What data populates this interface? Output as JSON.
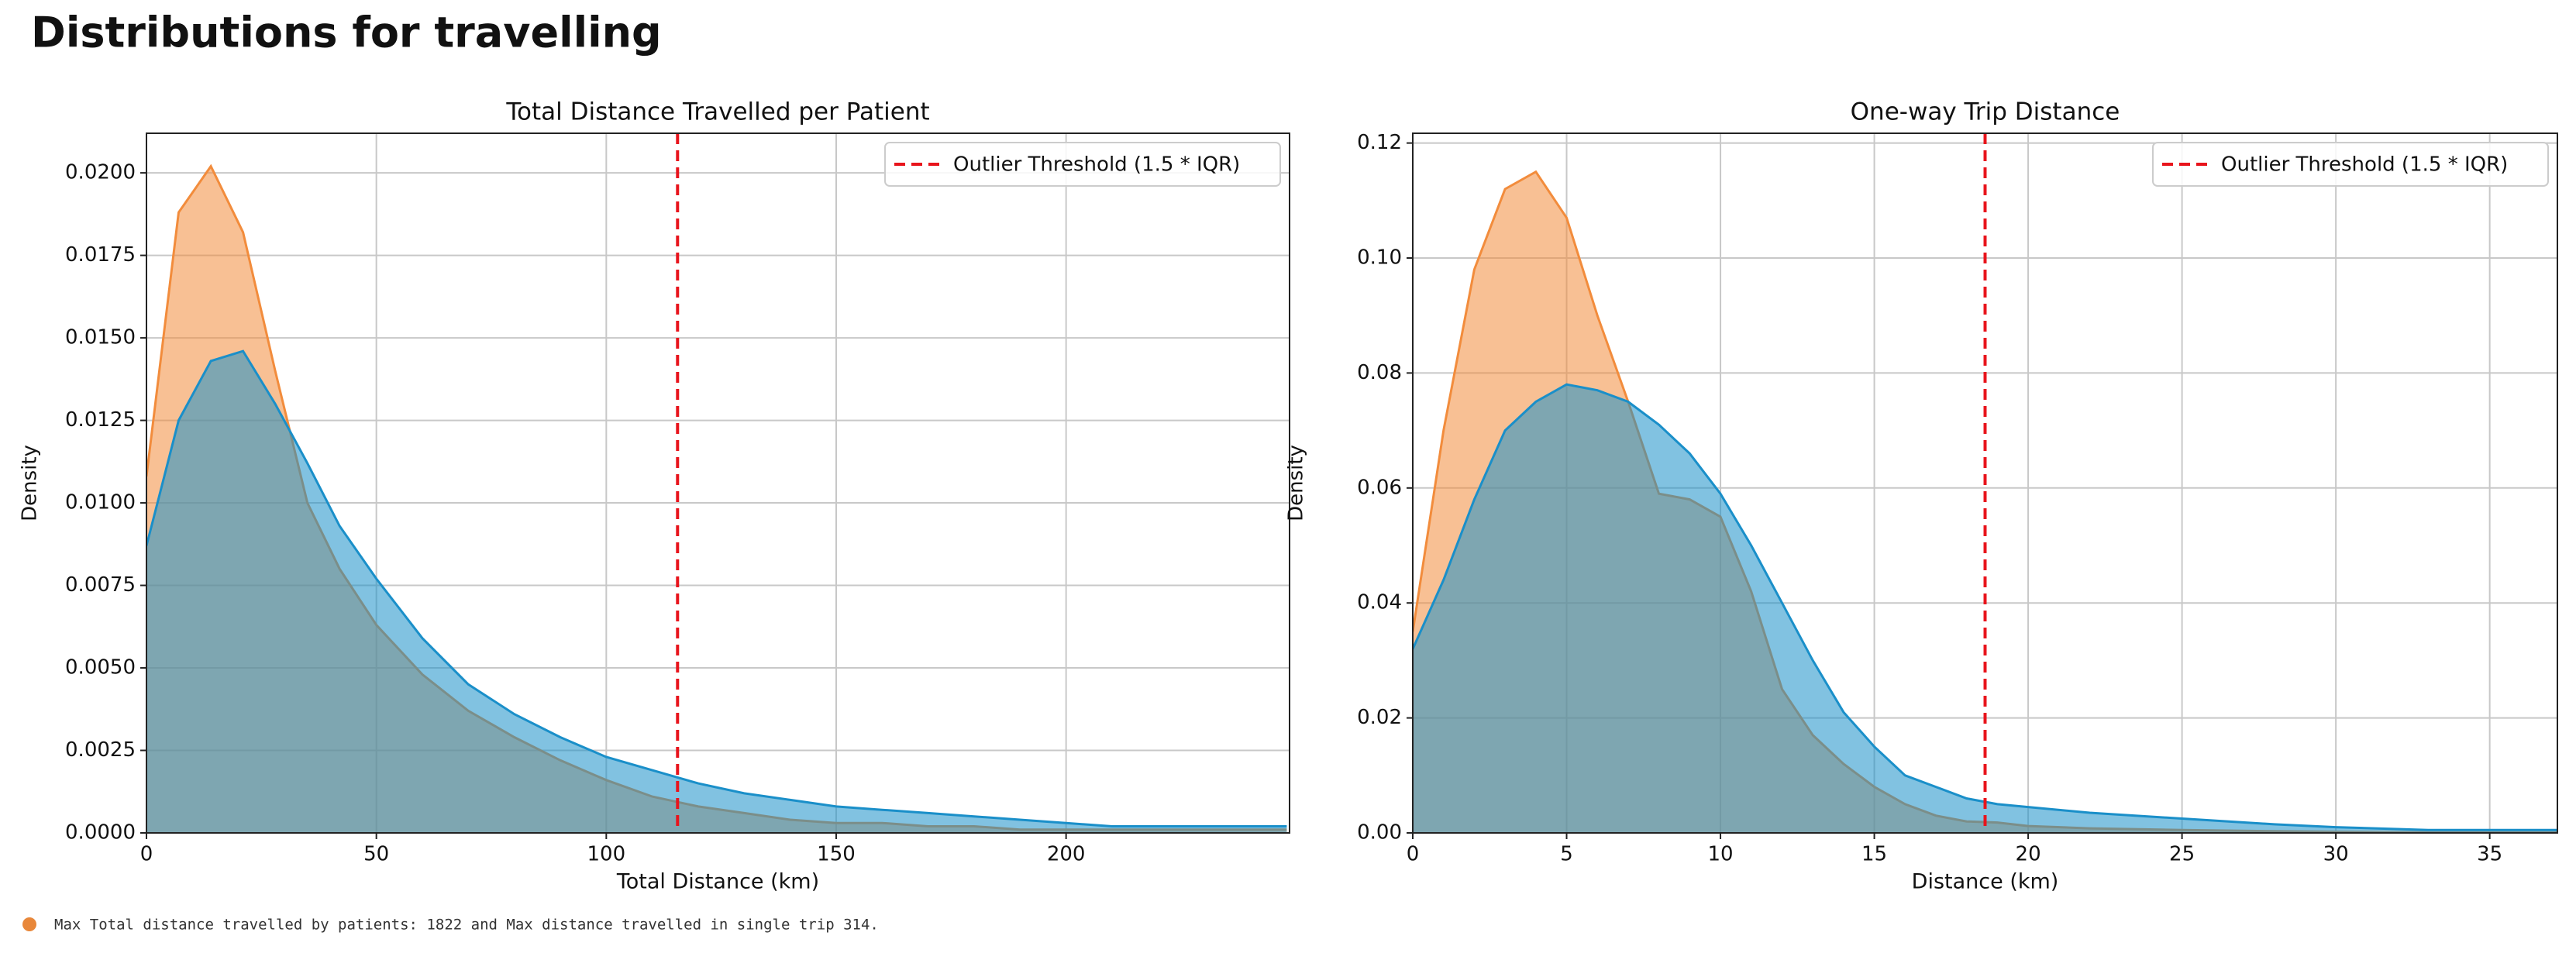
{
  "title": "Distributions for travelling",
  "footer": "Max Total distance travelled by patients: 1822 and  Max distance travelled in single trip 314.",
  "chart_data": [
    {
      "type": "area",
      "title": "Total Distance Travelled per Patient",
      "xlabel": "Total Distance (km)",
      "ylabel": "Density",
      "x": [
        0,
        7,
        14,
        21,
        28,
        35,
        42,
        50,
        60,
        70,
        80,
        90,
        100,
        110,
        120,
        130,
        140,
        150,
        160,
        170,
        180,
        190,
        200,
        210,
        220,
        230,
        240,
        248
      ],
      "series": [
        {
          "color": "#f28c3c",
          "values": [
            0.0108,
            0.0188,
            0.0202,
            0.0182,
            0.014,
            0.01,
            0.008,
            0.0063,
            0.0048,
            0.0037,
            0.0029,
            0.0022,
            0.0016,
            0.0011,
            0.0008,
            0.0006,
            0.0004,
            0.0003,
            0.0003,
            0.0002,
            0.0002,
            0.0001,
            0.0001,
            0.0001,
            0.0001,
            0.0001,
            0.0001,
            0.0001
          ]
        },
        {
          "color": "#1a8fc9",
          "values": [
            0.0087,
            0.0125,
            0.0143,
            0.0146,
            0.013,
            0.0112,
            0.0093,
            0.0077,
            0.0059,
            0.0045,
            0.0036,
            0.0029,
            0.0023,
            0.0019,
            0.0015,
            0.0012,
            0.001,
            0.0008,
            0.0007,
            0.0006,
            0.0005,
            0.0004,
            0.0003,
            0.0002,
            0.0002,
            0.0002,
            0.0002,
            0.0002
          ]
        }
      ],
      "xlim": [
        0,
        248.6
      ],
      "xticks": [
        0,
        50,
        100,
        150,
        200
      ],
      "ylim": [
        0,
        0.0212
      ],
      "yticks": [
        {
          "value": 0,
          "label": "0.0000"
        },
        {
          "value": 0.0025,
          "label": "0.0025"
        },
        {
          "value": 0.005,
          "label": "0.0050"
        },
        {
          "value": 0.0075,
          "label": "0.0075"
        },
        {
          "value": 0.01,
          "label": "0.0100"
        },
        {
          "value": 0.0125,
          "label": "0.0125"
        },
        {
          "value": 0.015,
          "label": "0.0150"
        },
        {
          "value": 0.0175,
          "label": "0.0175"
        },
        {
          "value": 0.02,
          "label": "0.0200"
        }
      ],
      "threshold": {
        "value": 115.5,
        "label": "Outlier Threshold (1.5 * IQR)",
        "color": "#e8141c"
      },
      "grid": true,
      "legend": "upper right"
    },
    {
      "type": "area",
      "title": "One-way Trip Distance",
      "xlabel": "Distance (km)",
      "ylabel": "Density",
      "x": [
        0,
        1,
        2,
        3,
        4,
        5,
        6,
        7,
        8,
        9,
        10,
        11,
        12,
        13,
        14,
        15,
        16,
        17,
        18,
        19,
        20,
        22,
        25,
        28,
        30,
        33,
        37.2
      ],
      "series": [
        {
          "color": "#f28c3c",
          "values": [
            0.035,
            0.07,
            0.098,
            0.112,
            0.115,
            0.107,
            0.09,
            0.075,
            0.059,
            0.058,
            0.055,
            0.042,
            0.025,
            0.017,
            0.012,
            0.008,
            0.005,
            0.003,
            0.002,
            0.0018,
            0.0012,
            0.0008,
            0.0005,
            0.0003,
            0.0002,
            0.0001,
            0.0001
          ]
        },
        {
          "color": "#1a8fc9",
          "values": [
            0.032,
            0.044,
            0.058,
            0.07,
            0.075,
            0.078,
            0.077,
            0.075,
            0.071,
            0.066,
            0.059,
            0.05,
            0.04,
            0.03,
            0.021,
            0.015,
            0.01,
            0.008,
            0.006,
            0.005,
            0.0045,
            0.0035,
            0.0025,
            0.0015,
            0.001,
            0.0005,
            0.0005
          ]
        }
      ],
      "xlim": [
        0,
        37.2
      ],
      "xticks": [
        0,
        5,
        10,
        15,
        20,
        25,
        30,
        35
      ],
      "ylim": [
        0,
        0.1217
      ],
      "yticks": [
        {
          "value": 0,
          "label": "0.00"
        },
        {
          "value": 0.02,
          "label": "0.02"
        },
        {
          "value": 0.04,
          "label": "0.04"
        },
        {
          "value": 0.06,
          "label": "0.06"
        },
        {
          "value": 0.08,
          "label": "0.08"
        },
        {
          "value": 0.1,
          "label": "0.10"
        },
        {
          "value": 0.12,
          "label": "0.12"
        }
      ],
      "threshold": {
        "value": 18.6,
        "label": "Outlier Threshold (1.5 * IQR)",
        "color": "#e8141c"
      },
      "grid": true,
      "legend": "upper right"
    }
  ]
}
